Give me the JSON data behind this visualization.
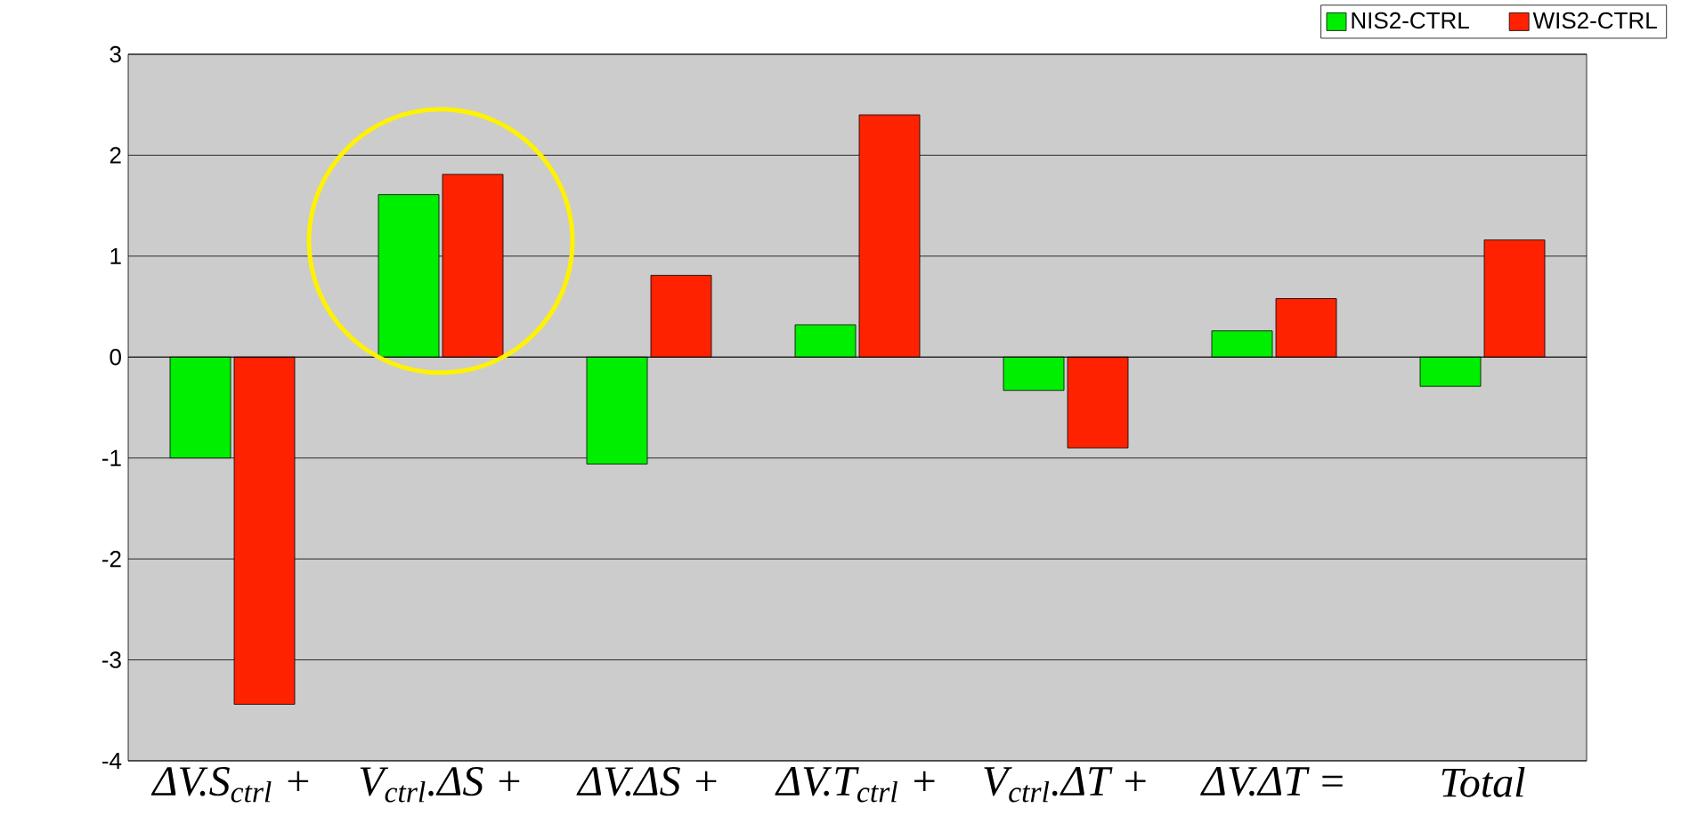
{
  "chart_data": {
    "type": "bar",
    "categories": [
      "ΔV.S$_{ctrl}$ +",
      "V$_{ctrl}$.ΔS +",
      "ΔV.ΔS +",
      "ΔV.T$_{ctrl}$ +",
      "V$_{ctrl}$.ΔT +",
      "ΔV.ΔT =",
      "Total"
    ],
    "series": [
      {
        "name": "NIS2-CTRL",
        "color": "#00ee00",
        "values": [
          -1.0,
          1.61,
          -1.06,
          0.32,
          -0.33,
          0.26,
          -0.29
        ]
      },
      {
        "name": "WIS2-CTRL",
        "color": "#ff2200",
        "values": [
          -3.44,
          1.81,
          0.81,
          2.4,
          -0.9,
          0.58,
          1.16
        ]
      }
    ],
    "ylim": [
      -4,
      3
    ],
    "yticks": [
      -4,
      -3,
      -2,
      -1,
      0,
      1,
      2,
      3
    ],
    "grid": "y",
    "legend": "top right"
  }
}
